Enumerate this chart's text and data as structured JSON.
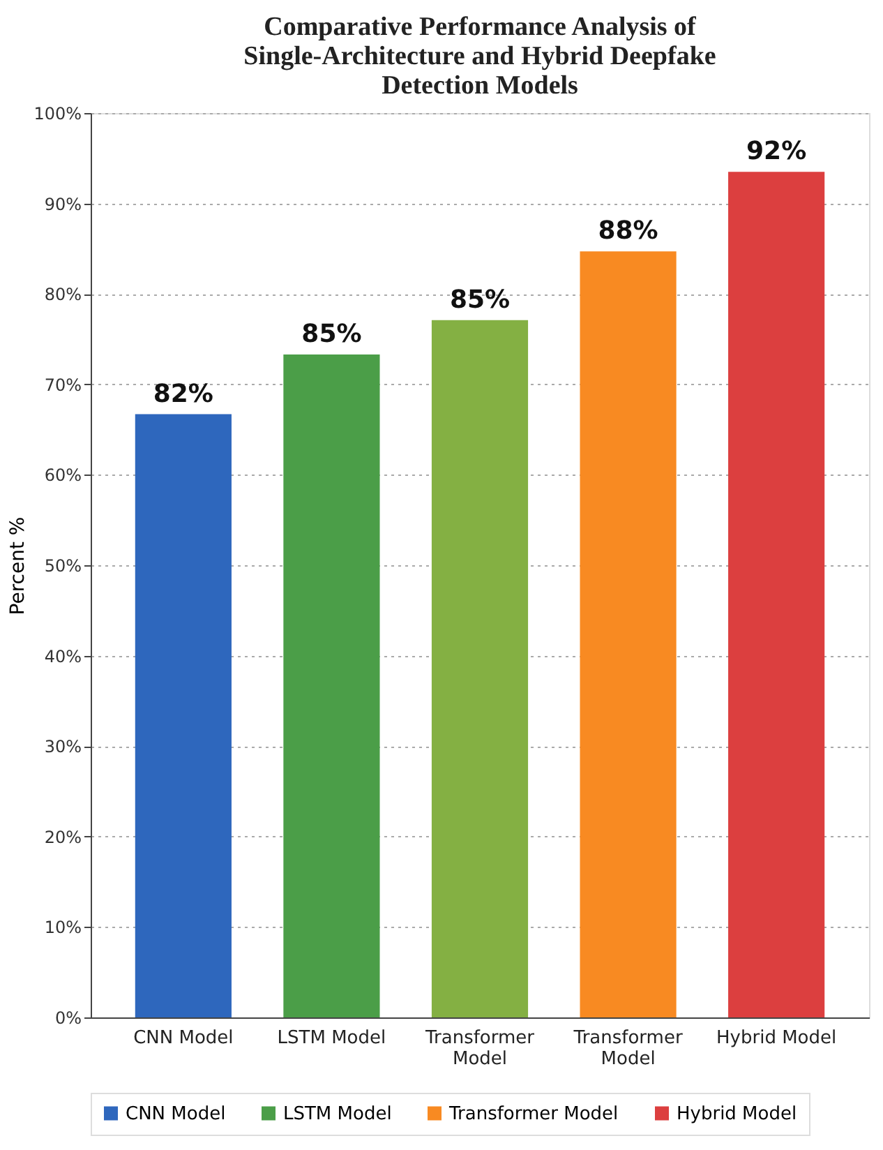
{
  "chart_data": {
    "type": "bar",
    "title": "Comparative Performance Analysis of Single-Architecture and Hybrid Deepfake Detection Models",
    "ylabel": "Percent %",
    "categories": [
      "CNN Model",
      "LSTM Model",
      "Transformer Model",
      "Transformer Model",
      "Hybrid Model"
    ],
    "series": [
      {
        "name": "CNN Model",
        "color": "#2e67bd",
        "values": [
          66.7,
          null,
          null,
          null,
          null
        ]
      },
      {
        "name": "LSTM Model",
        "color": "#4b9e48",
        "values": [
          null,
          73.3,
          null,
          null,
          null
        ]
      },
      {
        "color": "#84b043",
        "values": [
          null,
          null,
          77.1,
          null,
          null
        ]
      },
      {
        "name": "Transformer Model",
        "color": "#f88a22",
        "values": [
          null,
          null,
          null,
          84.7,
          null
        ]
      },
      {
        "name": "Hybrid Model",
        "color": "#dc3f3f",
        "values": [
          null,
          null,
          null,
          null,
          93.5
        ]
      }
    ],
    "value_labels": [
      "82%",
      "85%",
      "85%",
      "88%",
      "92%"
    ],
    "ylim": [
      0,
      100
    ],
    "yticks": [
      {
        "value": 0,
        "label": "0%"
      },
      {
        "value": 10,
        "label": "10%"
      },
      {
        "value": 20,
        "label": "20%"
      },
      {
        "value": 30,
        "label": "30%"
      },
      {
        "value": 40,
        "label": "40%"
      },
      {
        "value": 50,
        "label": "50%"
      },
      {
        "value": 60,
        "label": "60%"
      },
      {
        "value": 70,
        "label": "70%"
      },
      {
        "value": 80,
        "label": "80%"
      },
      {
        "value": 90,
        "label": "90%"
      },
      {
        "value": 100,
        "label": "100%"
      }
    ],
    "grid": "y",
    "legend": "bottom"
  }
}
